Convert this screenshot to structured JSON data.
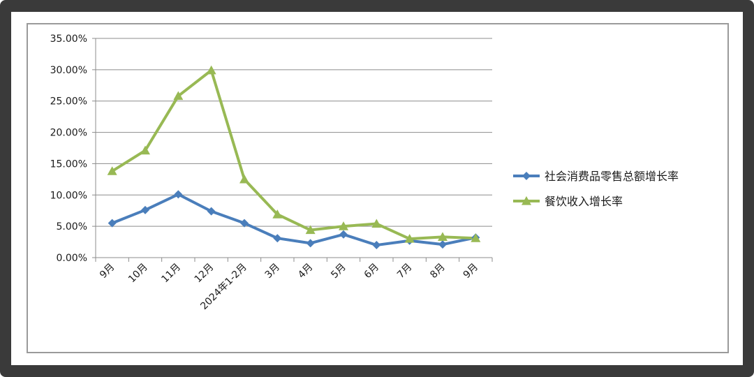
{
  "chart_data": {
    "type": "line",
    "title": "",
    "xlabel": "",
    "ylabel": "",
    "categories": [
      "9月",
      "10月",
      "11月",
      "12月",
      "2024年1-2月",
      "3月",
      "4月",
      "5月",
      "6月",
      "7月",
      "8月",
      "9月"
    ],
    "ylim": [
      0,
      35
    ],
    "yticks": [
      "0.00%",
      "5.00%",
      "10.00%",
      "15.00%",
      "20.00%",
      "25.00%",
      "30.00%",
      "35.00%"
    ],
    "grid": true,
    "legend_position": "right",
    "series": [
      {
        "name": "社会消费品零售总额增长率",
        "color": "#4a7ebb",
        "marker": "diamond",
        "values": [
          5.5,
          7.6,
          10.1,
          7.4,
          5.5,
          3.1,
          2.3,
          3.7,
          2.0,
          2.7,
          2.1,
          3.2
        ]
      },
      {
        "name": "餐饮收入增长率",
        "color": "#98b954",
        "marker": "triangle",
        "values": [
          13.8,
          17.1,
          25.8,
          29.9,
          12.5,
          6.9,
          4.4,
          5.0,
          5.4,
          3.0,
          3.3,
          3.1
        ]
      }
    ]
  }
}
